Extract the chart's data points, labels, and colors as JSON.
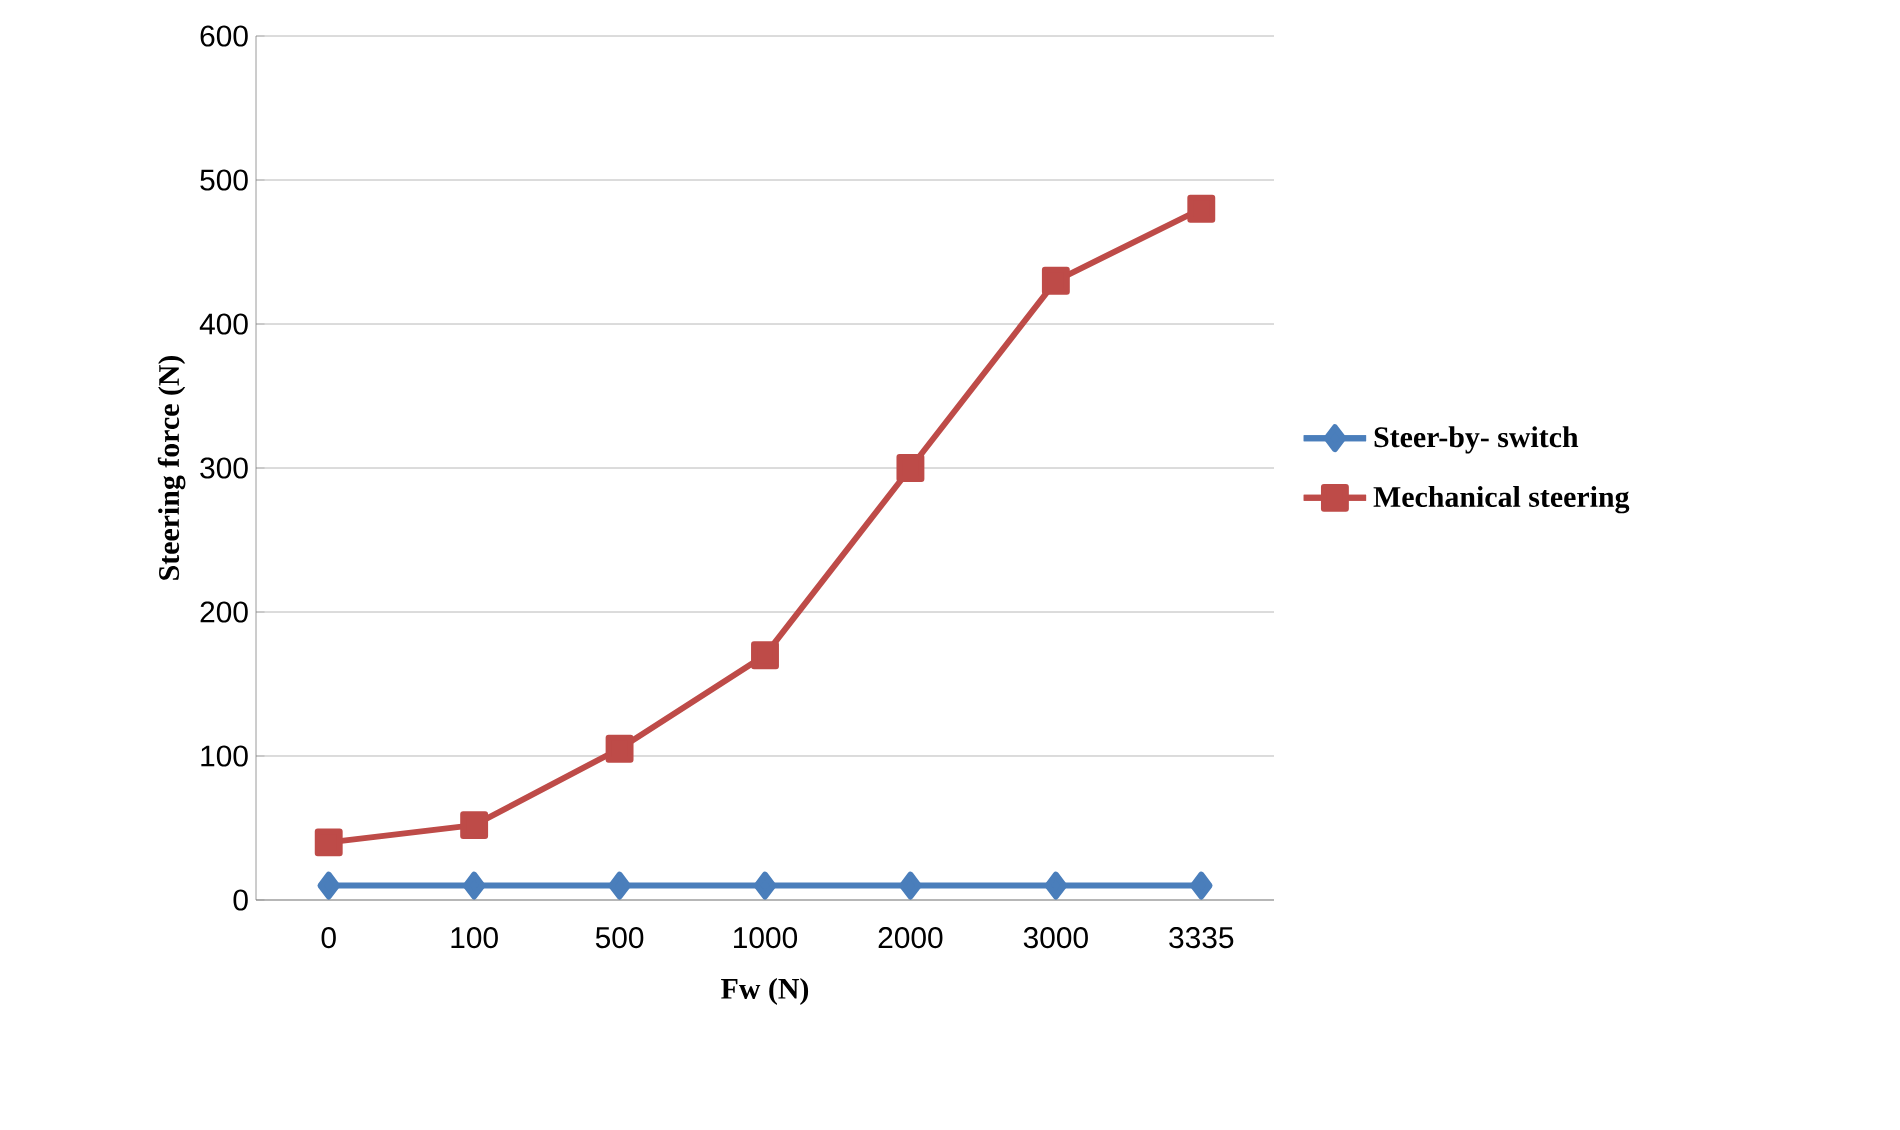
{
  "chart_data": {
    "type": "line",
    "xlabel": "Fw  (N)",
    "ylabel": "Steering  force (N)",
    "categories": [
      "0",
      "100",
      "500",
      "1000",
      "2000",
      "3000",
      "3335"
    ],
    "series": [
      {
        "name": "Steer-by- switch",
        "color": "#4a7ebb",
        "marker": "diamond",
        "values": [
          10,
          10,
          10,
          10,
          10,
          10,
          10
        ]
      },
      {
        "name": "Mechanical steering",
        "color": "#be4b48",
        "marker": "square",
        "values": [
          40,
          52,
          105,
          170,
          300,
          430,
          480
        ]
      }
    ],
    "ylim": [
      0,
      600
    ],
    "yticks": [
      0,
      100,
      200,
      300,
      400,
      500,
      600
    ],
    "grid": "y",
    "legend": "right",
    "line_style": "solid"
  }
}
